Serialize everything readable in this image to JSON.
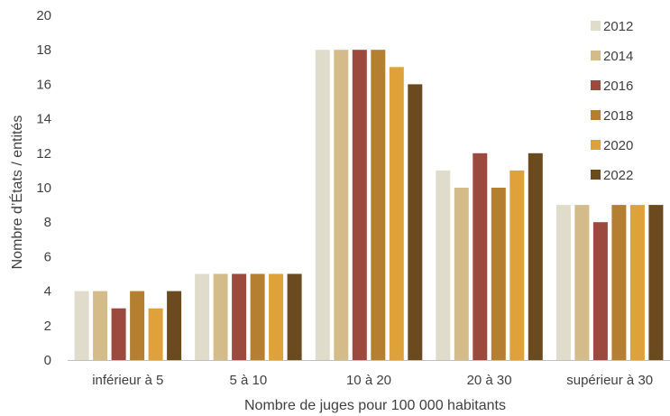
{
  "chart_data": {
    "type": "bar",
    "title": "",
    "xlabel": "Nombre de juges pour 100 000 habitants",
    "ylabel": "Nombre d’États / entités",
    "ylim": [
      0,
      20
    ],
    "yticks": [
      "0",
      "2",
      "4",
      "6",
      "8",
      "10",
      "12",
      "14",
      "16",
      "18",
      "20"
    ],
    "grid": false,
    "legend_position": "right",
    "categories": [
      "inférieur à 5",
      "5 à 10",
      "10 à 20",
      "20 à 30",
      "supérieur à 30"
    ],
    "series": [
      {
        "name": "2012",
        "color": "#e0dccb",
        "values": [
          4,
          5,
          18,
          11,
          9
        ]
      },
      {
        "name": "2014",
        "color": "#d4bb8a",
        "values": [
          4,
          5,
          18,
          10,
          9
        ]
      },
      {
        "name": "2016",
        "color": "#9c4a3d",
        "values": [
          3,
          5,
          18,
          12,
          8
        ]
      },
      {
        "name": "2018",
        "color": "#b47f30",
        "values": [
          4,
          5,
          18,
          10,
          9
        ]
      },
      {
        "name": "2020",
        "color": "#dfa13a",
        "values": [
          3,
          5,
          17,
          11,
          9
        ]
      },
      {
        "name": "2022",
        "color": "#6b4a1f",
        "values": [
          4,
          5,
          16,
          12,
          9
        ]
      }
    ]
  }
}
